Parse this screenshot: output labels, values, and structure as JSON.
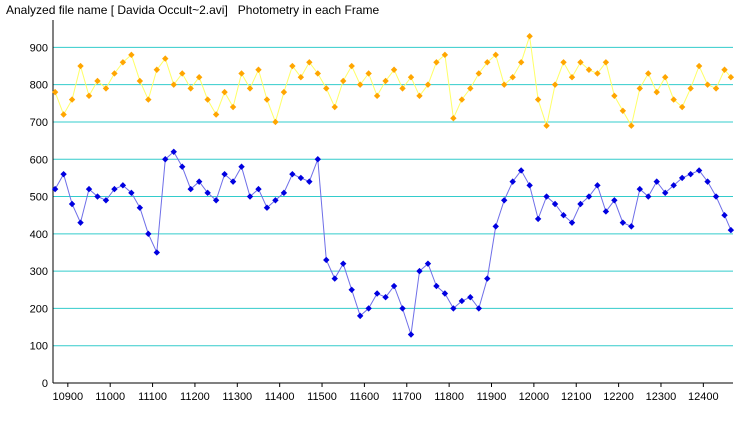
{
  "chart_data": {
    "type": "scatter",
    "title": "Analyzed file name [ Davida Occult~2.avi]   Photometry in each Frame",
    "xlabel": "",
    "ylabel": "",
    "xlim": [
      10865,
      12470
    ],
    "ylim": [
      0,
      960
    ],
    "x_ticks": [
      10900,
      11000,
      11100,
      11200,
      11300,
      11400,
      11500,
      11600,
      11700,
      11800,
      11900,
      12000,
      12100,
      12200,
      12300,
      12400
    ],
    "y_ticks": [
      0,
      100,
      200,
      300,
      400,
      500,
      600,
      700,
      800,
      900
    ],
    "grid": "horizontal",
    "legend": "none",
    "series": [
      {
        "color": "#ffa500",
        "line_color": "#ffff66",
        "x": [
          10870,
          10890,
          10910,
          10930,
          10950,
          10970,
          10990,
          11010,
          11030,
          11050,
          11070,
          11090,
          11110,
          11130,
          11150,
          11170,
          11190,
          11210,
          11230,
          11250,
          11270,
          11290,
          11310,
          11330,
          11350,
          11370,
          11390,
          11410,
          11430,
          11450,
          11470,
          11490,
          11510,
          11530,
          11550,
          11570,
          11590,
          11610,
          11630,
          11650,
          11670,
          11690,
          11710,
          11730,
          11750,
          11770,
          11790,
          11810,
          11830,
          11850,
          11870,
          11890,
          11910,
          11930,
          11950,
          11970,
          11990,
          12010,
          12030,
          12050,
          12070,
          12090,
          12110,
          12130,
          12150,
          12170,
          12190,
          12210,
          12230,
          12250,
          12270,
          12290,
          12310,
          12330,
          12350,
          12370,
          12390,
          12410,
          12430,
          12450,
          12465
        ],
        "y": [
          780,
          720,
          760,
          850,
          770,
          810,
          790,
          830,
          860,
          880,
          810,
          760,
          840,
          870,
          800,
          830,
          790,
          820,
          760,
          720,
          780,
          740,
          830,
          790,
          840,
          760,
          700,
          780,
          850,
          820,
          860,
          830,
          790,
          740,
          810,
          850,
          800,
          830,
          770,
          810,
          840,
          790,
          820,
          770,
          800,
          860,
          880,
          710,
          760,
          790,
          830,
          860,
          880,
          800,
          820,
          860,
          930,
          760,
          690,
          800,
          860,
          820,
          860,
          840,
          830,
          860,
          770,
          730,
          690,
          790,
          830,
          780,
          820,
          760,
          740,
          790,
          850,
          800,
          790,
          840,
          820
        ]
      },
      {
        "color": "#0000e0",
        "line_color": "#6f6fe8",
        "x": [
          10870,
          10890,
          10910,
          10930,
          10950,
          10970,
          10990,
          11010,
          11030,
          11050,
          11070,
          11090,
          11110,
          11130,
          11150,
          11170,
          11190,
          11210,
          11230,
          11250,
          11270,
          11290,
          11310,
          11330,
          11350,
          11370,
          11390,
          11410,
          11430,
          11450,
          11470,
          11490,
          11510,
          11530,
          11550,
          11570,
          11590,
          11610,
          11630,
          11650,
          11670,
          11690,
          11710,
          11730,
          11750,
          11770,
          11790,
          11810,
          11830,
          11850,
          11870,
          11890,
          11910,
          11930,
          11950,
          11970,
          11990,
          12010,
          12030,
          12050,
          12070,
          12090,
          12110,
          12130,
          12150,
          12170,
          12190,
          12210,
          12230,
          12250,
          12270,
          12290,
          12310,
          12330,
          12350,
          12370,
          12390,
          12410,
          12430,
          12450,
          12465
        ],
        "y": [
          520,
          560,
          480,
          430,
          520,
          500,
          490,
          520,
          530,
          510,
          470,
          400,
          350,
          600,
          620,
          580,
          520,
          540,
          510,
          490,
          560,
          540,
          580,
          500,
          520,
          470,
          490,
          510,
          560,
          550,
          540,
          600,
          330,
          280,
          320,
          250,
          180,
          200,
          240,
          230,
          260,
          200,
          130,
          300,
          320,
          260,
          240,
          200,
          220,
          230,
          200,
          280,
          420,
          490,
          540,
          570,
          530,
          440,
          500,
          480,
          450,
          430,
          480,
          500,
          530,
          460,
          490,
          430,
          420,
          520,
          500,
          540,
          510,
          530,
          550,
          560,
          570,
          540,
          500,
          450,
          410
        ]
      }
    ]
  }
}
